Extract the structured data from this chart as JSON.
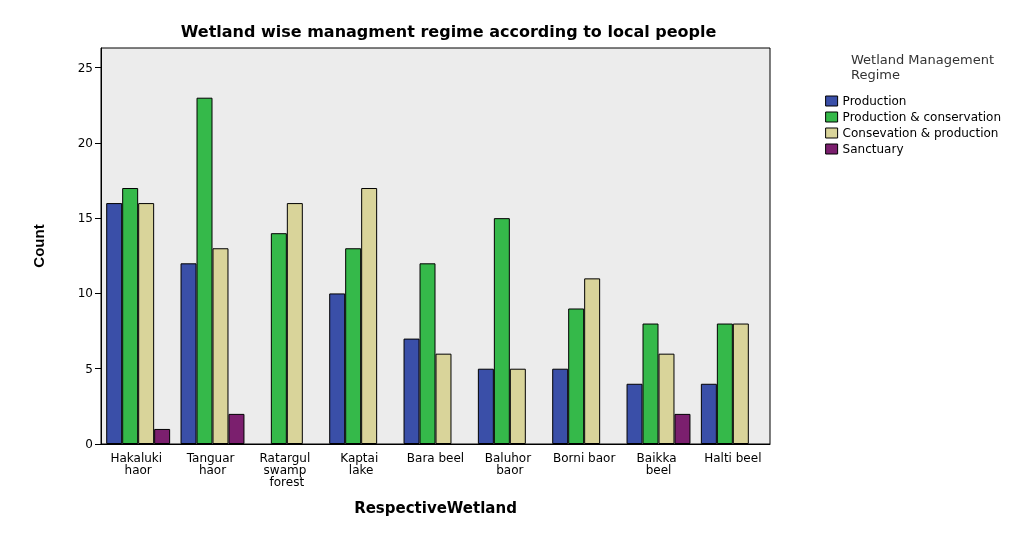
{
  "chart_data": {
    "type": "bar",
    "title": "Wetland wise managment regime according to local people",
    "xlabel": "RespectiveWetland",
    "ylabel": "Count",
    "legend_title": "Wetland Management Regime",
    "categories": [
      "Hakaluki haor",
      "Tanguar haor",
      "Ratargul swamp forest",
      "Kaptai lake",
      "Bara beel",
      "Baluhor baor",
      "Borni baor",
      "Baikka beel",
      "Halti beel"
    ],
    "series": [
      {
        "name": "Production",
        "color": "#3a4fa8",
        "values": [
          16,
          12,
          null,
          10,
          7,
          5,
          5,
          4,
          4
        ]
      },
      {
        "name": "Production & conservation",
        "color": "#35b94a",
        "values": [
          17,
          23,
          14,
          13,
          12,
          15,
          9,
          8,
          8
        ]
      },
      {
        "name": "Consevation & production",
        "color": "#d9d49a",
        "values": [
          16,
          13,
          16,
          17,
          6,
          5,
          11,
          6,
          8
        ]
      },
      {
        "name": "Sanctuary",
        "color": "#7b1f6e",
        "values": [
          1,
          2,
          null,
          null,
          null,
          null,
          null,
          2,
          null
        ]
      }
    ],
    "ylim": [
      0,
      26.3
    ],
    "yticks": [
      0,
      5,
      10,
      15,
      20,
      25
    ],
    "grid": false,
    "legend": "top right"
  }
}
